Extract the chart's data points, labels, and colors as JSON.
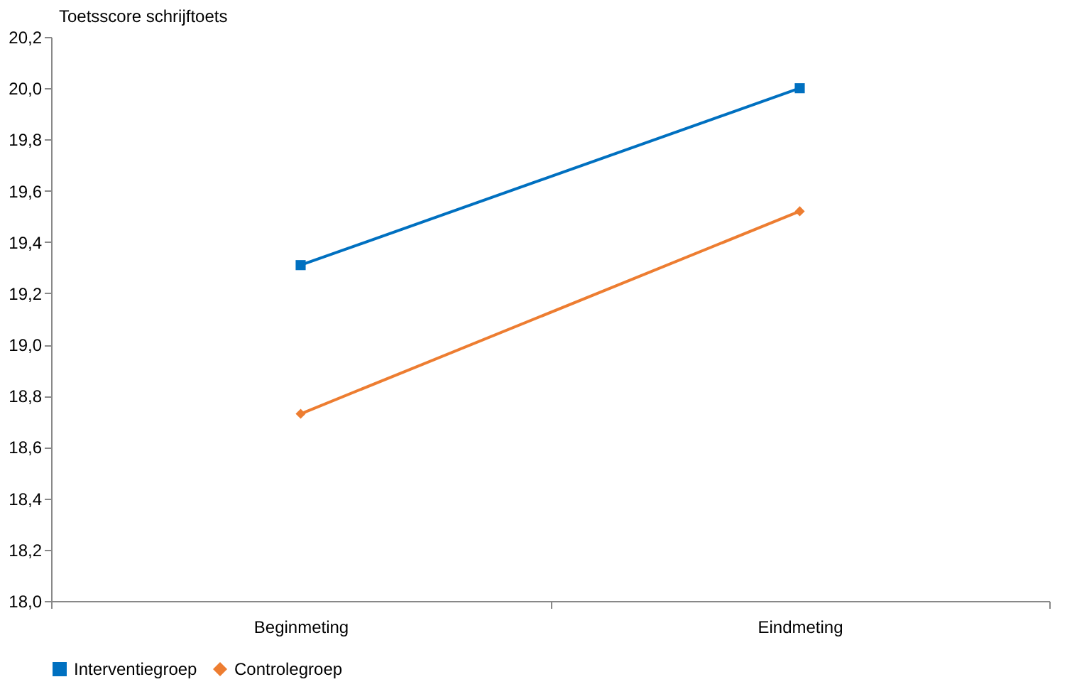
{
  "chart_data": {
    "type": "line",
    "ylabel": "Toetsscore schrijftoets",
    "categories": [
      "Beginmeting",
      "Eindmeting"
    ],
    "series": [
      {
        "name": "Interventiegroep",
        "color": "#0070c0",
        "values": [
          19.31,
          20.0
        ],
        "marker": "square"
      },
      {
        "name": "Controlegroep",
        "color": "#ed7d31",
        "values": [
          18.73,
          19.52
        ],
        "marker": "diamond"
      }
    ],
    "ylim": [
      18.0,
      20.2
    ],
    "yticks": [
      {
        "value": 18.0,
        "label": "18,0"
      },
      {
        "value": 18.2,
        "label": "18,2"
      },
      {
        "value": 18.4,
        "label": "18,4"
      },
      {
        "value": 18.6,
        "label": "18,6"
      },
      {
        "value": 18.8,
        "label": "18,8"
      },
      {
        "value": 19.0,
        "label": "19,0"
      },
      {
        "value": 19.2,
        "label": "19,2"
      },
      {
        "value": 19.4,
        "label": "19,4"
      },
      {
        "value": 19.6,
        "label": "19,6"
      },
      {
        "value": 19.8,
        "label": "19,8"
      },
      {
        "value": 20.0,
        "label": "20,0"
      },
      {
        "value": 20.2,
        "label": "20,2"
      }
    ],
    "grid": false,
    "legend": "bottom",
    "line_style": "solid"
  }
}
